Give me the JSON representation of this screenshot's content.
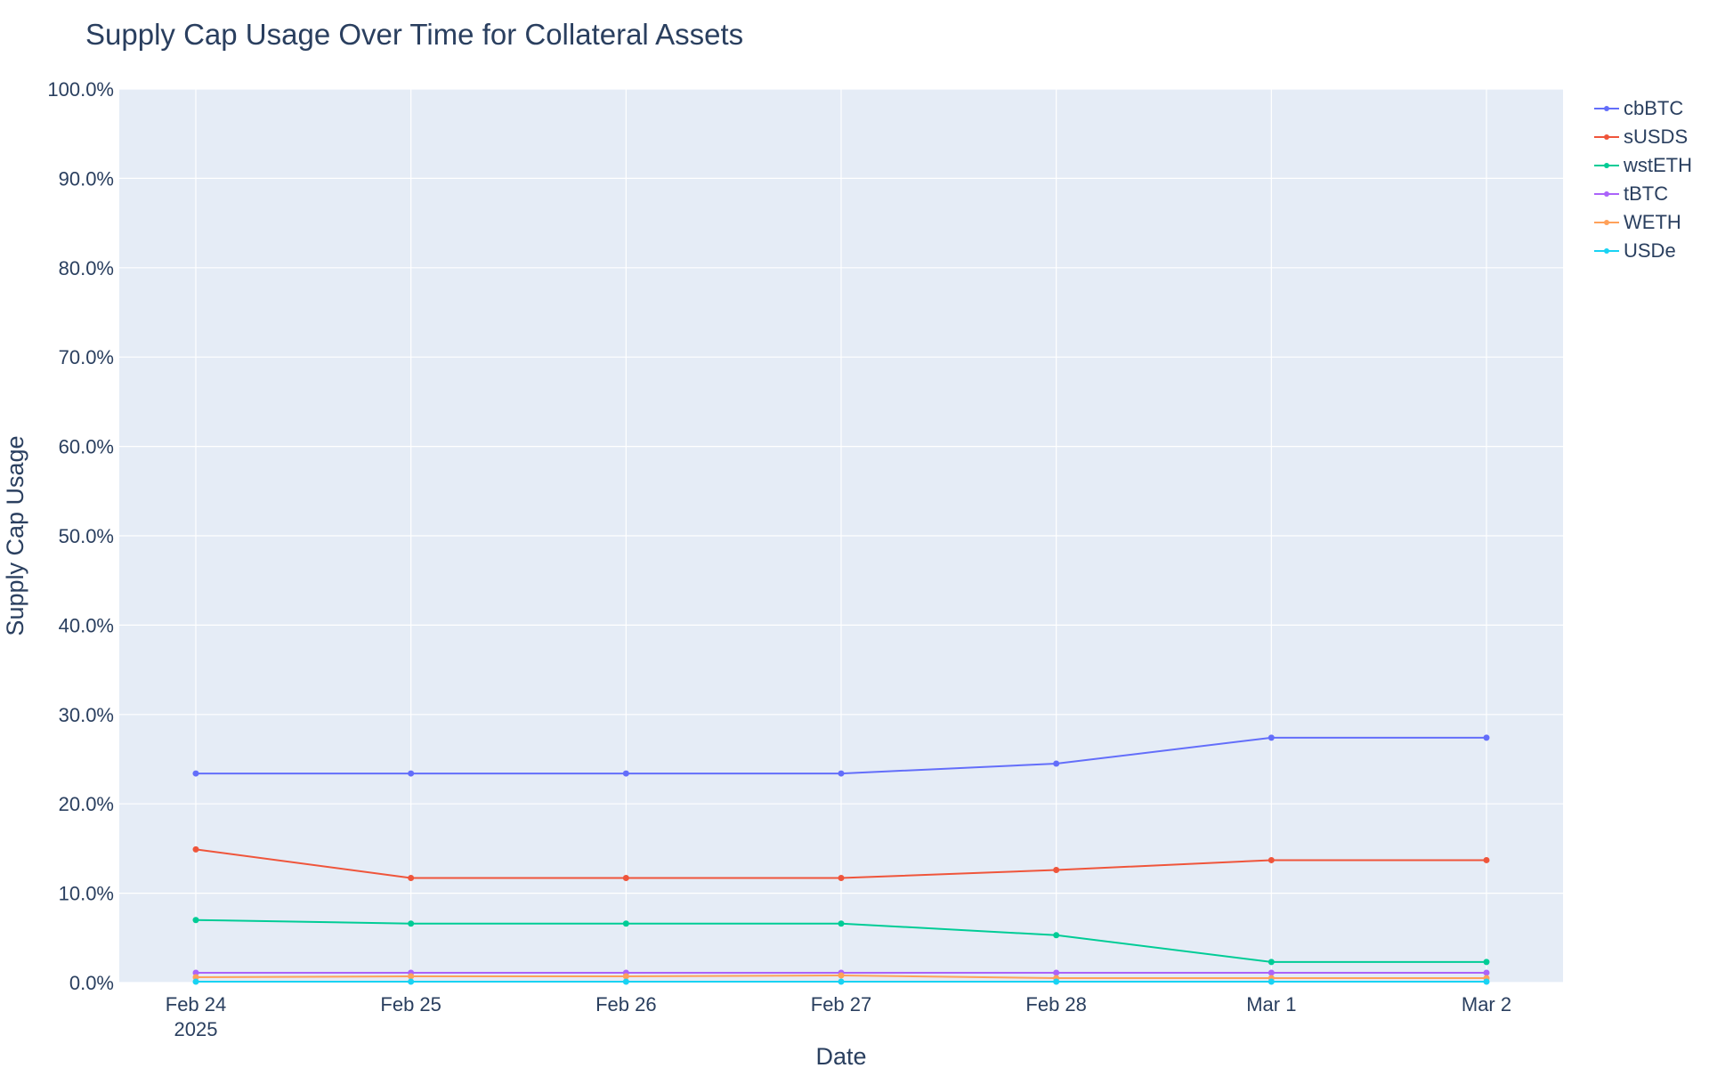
{
  "chart_data": {
    "type": "line",
    "title": "Supply Cap Usage Over Time for Collateral Assets",
    "xlabel": "Date",
    "ylabel": "Supply Cap Usage",
    "x": [
      "2025-02-24",
      "2025-02-25",
      "2025-02-26",
      "2025-02-27",
      "2025-02-28",
      "2025-03-01",
      "2025-03-02"
    ],
    "x_tick_labels": [
      "Feb 24",
      "Feb 25",
      "Feb 26",
      "Feb 27",
      "Feb 28",
      "Mar 1",
      "Mar 2"
    ],
    "x_tick_sublabel": "2025",
    "ylim": [
      0,
      100
    ],
    "y_ticks": [
      0,
      10,
      20,
      30,
      40,
      50,
      60,
      70,
      80,
      90,
      100
    ],
    "y_tick_labels": [
      "0.0%",
      "10.0%",
      "20.0%",
      "30.0%",
      "40.0%",
      "50.0%",
      "60.0%",
      "70.0%",
      "80.0%",
      "90.0%",
      "100.0%"
    ],
    "grid": true,
    "legend_position": "top-right",
    "background": "#e5ecf6",
    "series": [
      {
        "name": "cbBTC",
        "color": "#636efa",
        "values": [
          23.4,
          23.4,
          23.4,
          23.4,
          24.5,
          27.4,
          27.4
        ]
      },
      {
        "name": "sUSDS",
        "color": "#ef553b",
        "values": [
          14.9,
          11.7,
          11.7,
          11.7,
          12.6,
          13.7,
          13.7
        ]
      },
      {
        "name": "wstETH",
        "color": "#00cc96",
        "values": [
          7.0,
          6.6,
          6.6,
          6.6,
          5.3,
          2.3,
          2.3
        ]
      },
      {
        "name": "tBTC",
        "color": "#ab63fa",
        "values": [
          1.1,
          1.1,
          1.1,
          1.1,
          1.1,
          1.1,
          1.1
        ]
      },
      {
        "name": "WETH",
        "color": "#ffa15a",
        "values": [
          0.6,
          0.7,
          0.7,
          0.8,
          0.5,
          0.5,
          0.5
        ]
      },
      {
        "name": "USDe",
        "color": "#19d3f3",
        "values": [
          0.1,
          0.1,
          0.1,
          0.1,
          0.1,
          0.1,
          0.1
        ]
      }
    ]
  }
}
